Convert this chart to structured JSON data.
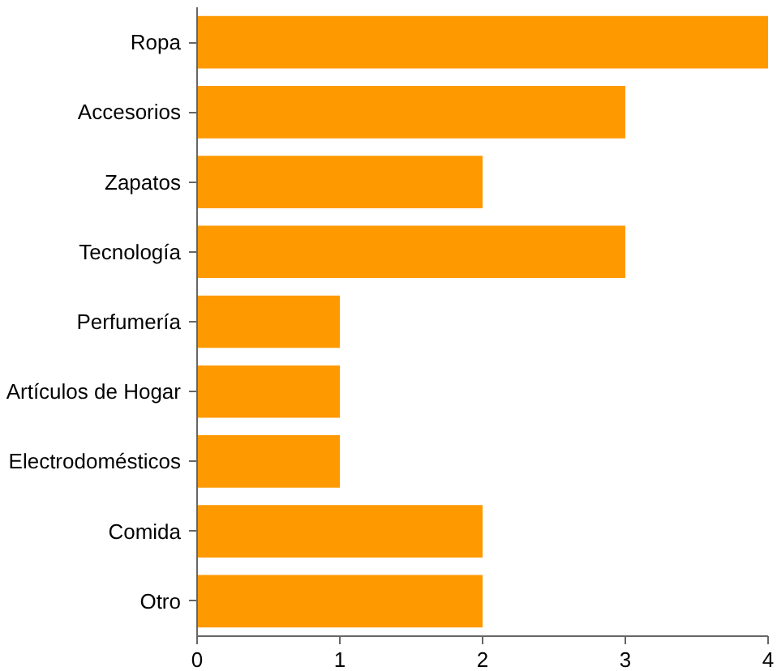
{
  "chart_data": {
    "type": "bar",
    "orientation": "horizontal",
    "categories": [
      "Ropa",
      "Accesorios",
      "Zapatos",
      "Tecnología",
      "Perfumería",
      "Artículos de Hogar",
      "Electrodomésticos",
      "Comida",
      "Otro"
    ],
    "values": [
      4,
      3,
      2,
      3,
      1,
      1,
      1,
      2,
      2
    ],
    "color": "#ff9900",
    "xlim": [
      0,
      4
    ],
    "xticks": [
      0,
      1,
      2,
      3,
      4
    ],
    "grid": false
  }
}
